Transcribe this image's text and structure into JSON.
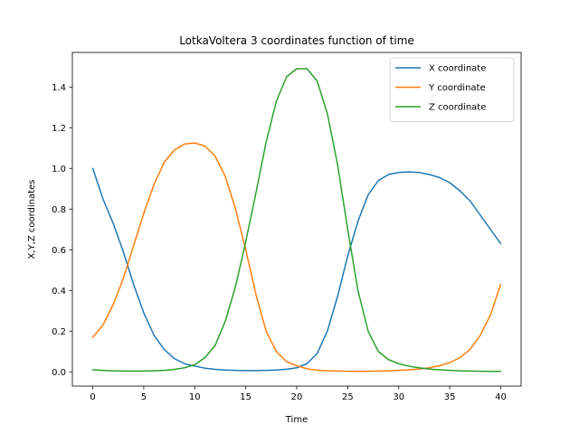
{
  "chart_data": {
    "type": "line",
    "title": "LotkaVoltera 3 coordinates function of time",
    "xlabel": "Time",
    "ylabel": "X,Y,Z coordinates",
    "xlim": [
      -2,
      42
    ],
    "ylim": [
      -0.07,
      1.57
    ],
    "xticks": [
      0,
      5,
      10,
      15,
      20,
      25,
      30,
      35,
      40
    ],
    "yticks": [
      0.0,
      0.2,
      0.4,
      0.6,
      0.8,
      1.0,
      1.2,
      1.4
    ],
    "grid": false,
    "legend_position": "top-right",
    "x": [
      0,
      1,
      2,
      3,
      4,
      5,
      6,
      7,
      8,
      9,
      10,
      11,
      12,
      13,
      14,
      15,
      16,
      17,
      18,
      19,
      20,
      21,
      22,
      23,
      24,
      25,
      26,
      27,
      28,
      29,
      30,
      31,
      32,
      33,
      34,
      35,
      36,
      37,
      38,
      39,
      40
    ],
    "series": [
      {
        "name": "X coordinate",
        "color": "#1f77b4",
        "values": [
          1.0,
          0.85,
          0.73,
          0.59,
          0.43,
          0.29,
          0.18,
          0.11,
          0.065,
          0.04,
          0.028,
          0.018,
          0.012,
          0.009,
          0.007,
          0.006,
          0.006,
          0.007,
          0.009,
          0.013,
          0.02,
          0.04,
          0.09,
          0.2,
          0.37,
          0.57,
          0.74,
          0.87,
          0.94,
          0.97,
          0.98,
          0.983,
          0.98,
          0.97,
          0.955,
          0.93,
          0.89,
          0.84,
          0.77,
          0.7,
          0.63
        ]
      },
      {
        "name": "Y coordinate",
        "color": "#ff7f0e",
        "values": [
          0.17,
          0.23,
          0.33,
          0.46,
          0.62,
          0.78,
          0.92,
          1.03,
          1.09,
          1.12,
          1.125,
          1.11,
          1.06,
          0.96,
          0.8,
          0.6,
          0.38,
          0.2,
          0.1,
          0.05,
          0.03,
          0.015,
          0.008,
          0.005,
          0.004,
          0.003,
          0.003,
          0.003,
          0.004,
          0.005,
          0.007,
          0.01,
          0.014,
          0.02,
          0.03,
          0.045,
          0.07,
          0.11,
          0.18,
          0.28,
          0.43
        ]
      },
      {
        "name": "Z coordinate",
        "color": "#2ca02c",
        "values": [
          0.01,
          0.007,
          0.005,
          0.004,
          0.004,
          0.004,
          0.005,
          0.007,
          0.012,
          0.02,
          0.035,
          0.07,
          0.13,
          0.25,
          0.42,
          0.64,
          0.88,
          1.13,
          1.33,
          1.45,
          1.49,
          1.49,
          1.43,
          1.27,
          1.02,
          0.7,
          0.4,
          0.2,
          0.1,
          0.06,
          0.04,
          0.028,
          0.02,
          0.014,
          0.01,
          0.007,
          0.005,
          0.004,
          0.003,
          0.002,
          0.002
        ]
      }
    ]
  }
}
